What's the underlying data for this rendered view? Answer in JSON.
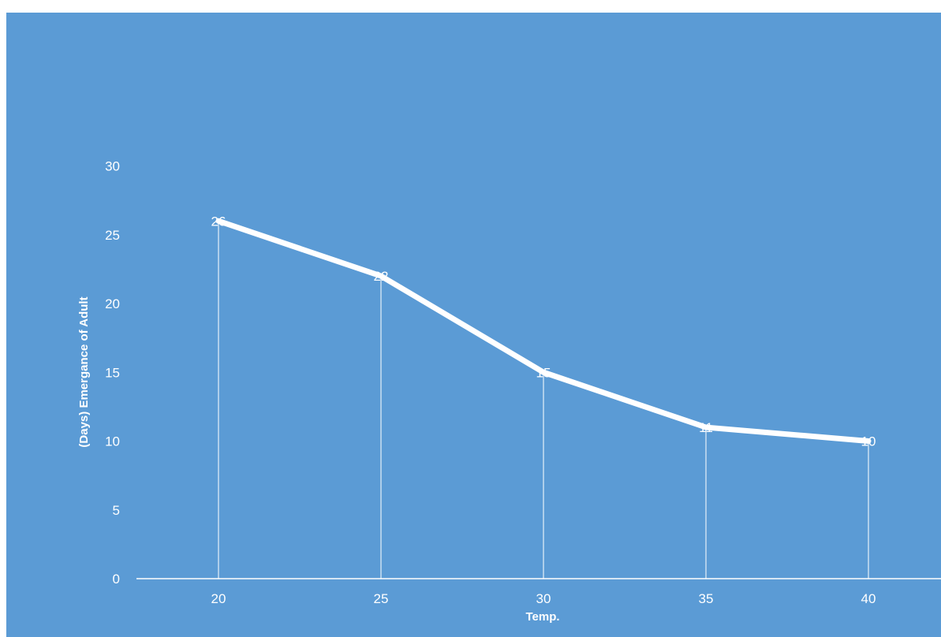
{
  "chart_data": {
    "type": "line",
    "x": [
      20,
      25,
      30,
      35,
      40
    ],
    "series": [
      {
        "values": [
          26,
          22,
          15,
          11,
          10
        ]
      }
    ],
    "xlabel": "Temp.",
    "ylabel": "(Days) Emergance of Adult",
    "ylim": [
      0,
      30
    ],
    "yticks": [
      0,
      5,
      10,
      15,
      20,
      25,
      30
    ],
    "xticks": [
      20,
      25,
      30,
      35,
      40
    ],
    "data_labels": [
      "26",
      "22",
      "15",
      "11",
      "10"
    ],
    "drop_lines": true,
    "grid": false,
    "legend": "none",
    "colors": {
      "background": "#5b9bd5",
      "line": "#ffffff",
      "text": "#ffffff"
    }
  }
}
